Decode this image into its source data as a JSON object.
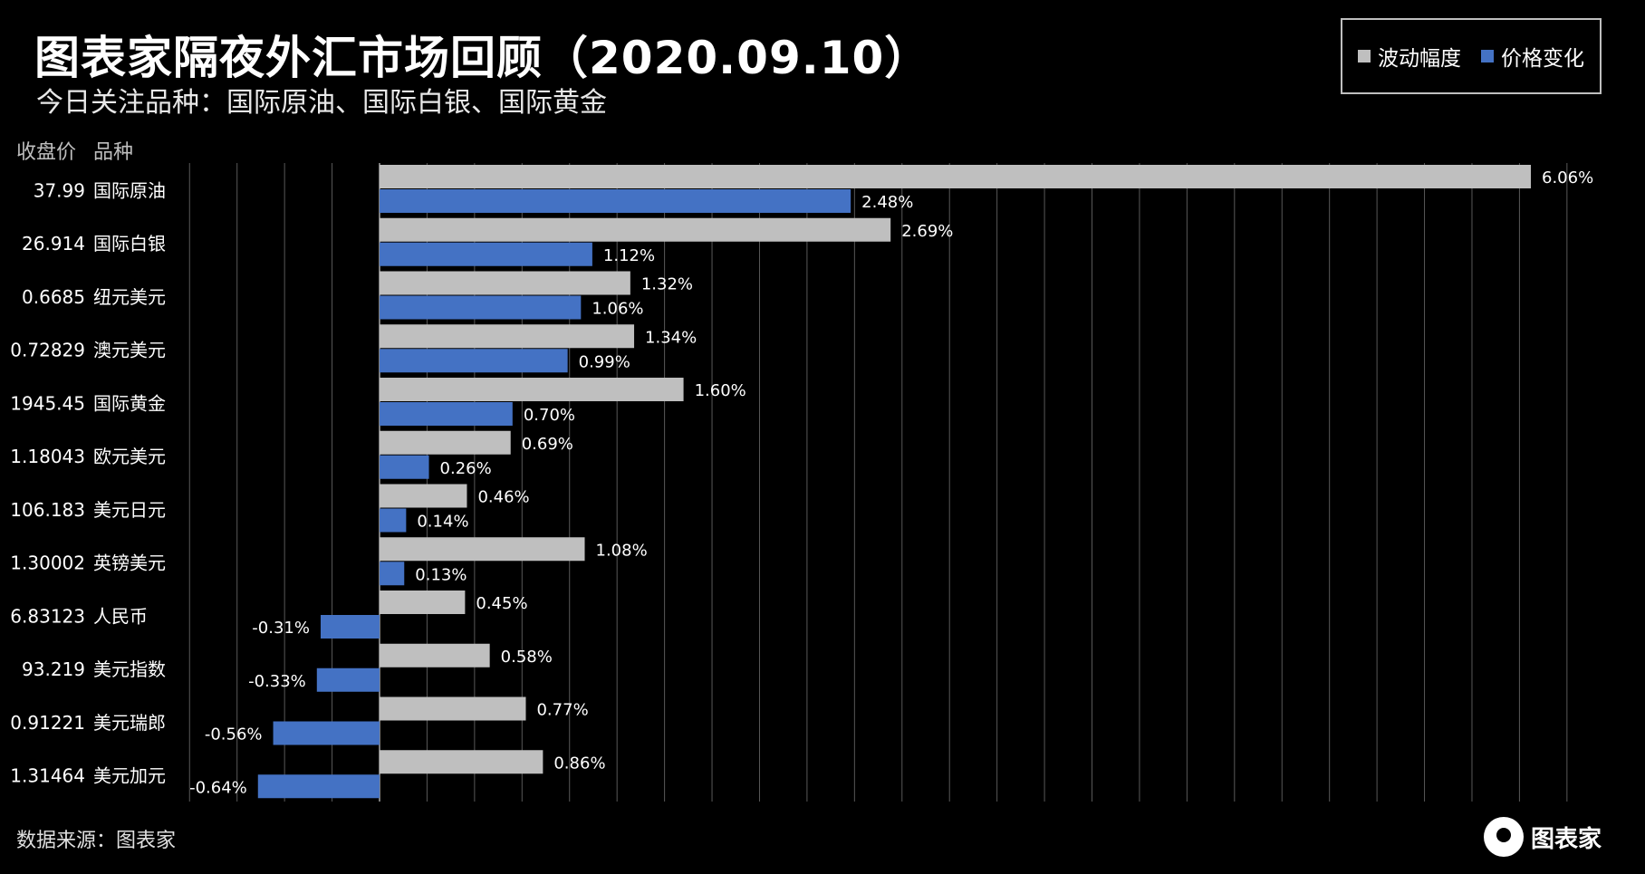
{
  "header": {
    "title": "图表家隔夜外汇市场回顾（2020.09.10）",
    "subtitle": "今日关注品种：国际原油、国际白银、国际黄金"
  },
  "columns": {
    "close_label": "收盘价",
    "name_label": "品种"
  },
  "footer": {
    "source": "数据来源：图表家",
    "logo_text": "图表家"
  },
  "colors": {
    "volatility": "#bfbfbf",
    "change": "#4472c4",
    "background": "#000000",
    "grid": "#595959"
  },
  "chart_data": {
    "type": "bar",
    "orientation": "horizontal",
    "categories": [
      "国际原油",
      "国际白银",
      "纽元美元",
      "澳元美元",
      "国际黄金",
      "欧元美元",
      "美元日元",
      "英镑美元",
      "人民币",
      "美元指数",
      "美元瑞郎",
      "美元加元"
    ],
    "close_prices": [
      "37.99",
      "26.914",
      "0.6685",
      "0.72829",
      "1945.45",
      "1.18043",
      "106.183",
      "1.30002",
      "6.83123",
      "93.219",
      "0.91221",
      "1.31464"
    ],
    "series": [
      {
        "name": "波动幅度",
        "values": [
          6.06,
          2.69,
          1.32,
          1.34,
          1.6,
          0.69,
          0.46,
          1.08,
          0.45,
          0.58,
          0.77,
          0.86
        ],
        "labels": [
          "6.06%",
          "2.69%",
          "1.32%",
          "1.34%",
          "1.60%",
          "0.69%",
          "0.46%",
          "1.08%",
          "0.45%",
          "0.58%",
          "0.77%",
          "0.86%"
        ]
      },
      {
        "name": "价格变化",
        "values": [
          2.48,
          1.12,
          1.06,
          0.99,
          0.7,
          0.26,
          0.14,
          0.13,
          -0.31,
          -0.33,
          -0.56,
          -0.64
        ],
        "labels": [
          "2.48%",
          "1.12%",
          "1.06%",
          "0.99%",
          "0.70%",
          "0.26%",
          "0.14%",
          "0.13%",
          "-0.31%",
          "-0.33%",
          "-0.56%",
          "-0.64%"
        ]
      }
    ],
    "xlim": [
      -1.0,
      6.4
    ],
    "grid": true,
    "legend_position": "top-right"
  }
}
